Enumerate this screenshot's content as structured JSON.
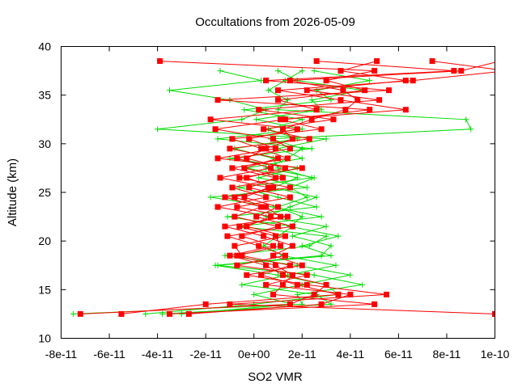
{
  "chart_data": {
    "type": "line",
    "title": "Occultations from 2026-05-09",
    "xlabel": "SO2 VMR",
    "ylabel": "Altitude (km)",
    "xlim": [
      -8e-11,
      1e-10
    ],
    "ylim": [
      10,
      40
    ],
    "grid": false,
    "legend": "none",
    "x_ticks": [
      {
        "value": -8e-11,
        "label": "-8e-11"
      },
      {
        "value": -6e-11,
        "label": "-6e-11"
      },
      {
        "value": -4e-11,
        "label": "-4e-11"
      },
      {
        "value": -2e-11,
        "label": "-2e-11"
      },
      {
        "value": 0,
        "label": "0e+00"
      },
      {
        "value": 2e-11,
        "label": "2e-11"
      },
      {
        "value": 4e-11,
        "label": "4e-11"
      },
      {
        "value": 6e-11,
        "label": "6e-11"
      },
      {
        "value": 8e-11,
        "label": "8e-11"
      },
      {
        "value": 1e-10,
        "label": "1e-10"
      }
    ],
    "y_ticks": [
      {
        "value": 10,
        "label": "10"
      },
      {
        "value": 15,
        "label": "15"
      },
      {
        "value": 20,
        "label": "20"
      },
      {
        "value": 25,
        "label": "25"
      },
      {
        "value": 30,
        "label": "30"
      },
      {
        "value": 35,
        "label": "35"
      },
      {
        "value": 40,
        "label": "40"
      }
    ],
    "series": [
      {
        "color": "#ff0000",
        "marker": "square",
        "y": [
          12.5,
          13.5,
          14.5,
          15.5,
          16.5,
          17.5,
          18.5,
          19.5,
          20.5,
          21.5,
          22.5,
          23.5,
          24.5,
          25.5,
          26.5,
          27.5,
          28.5,
          29.5,
          30.5,
          31.5,
          32.5,
          33.5,
          34.5,
          35.5,
          36.5,
          37.5,
          38.5
        ],
        "profiles": [
          [
            -7.2e-11,
            1.5e-11,
            2.5e-11,
            3e-11,
            1.2e-11,
            5e-12,
            -1e-11,
            8e-12,
            -5e-12,
            1e-11,
            -8e-12,
            3e-12,
            -1.2e-11,
            1.5e-11,
            -6e-12,
            2e-11,
            -1.5e-11,
            9e-12,
            -2e-12,
            1.8e-11,
            -1.8e-11,
            2.6e-11,
            1e-11,
            4.6e-11,
            3e-11,
            5e-11,
            -3.9e-11
          ],
          [
            -5.5e-11,
            -2e-11,
            3.5e-11,
            1.8e-11,
            3e-12,
            1.5e-11,
            -5e-12,
            -8e-12,
            1.3e-11,
            -3e-12,
            7e-12,
            -1.5e-11,
            5e-12,
            -9e-12,
            1.2e-11,
            -4e-12,
            1e-11,
            -1e-11,
            2.3e-11,
            4e-12,
            3.3e-11,
            2e-12,
            5.2e-11,
            2.2e-11,
            6.3e-11,
            3.6e-11,
            5.1e-11
          ],
          [
            -2.7e-11,
            2.8e-11,
            4e-11,
            5e-12,
            2.2e-11,
            -7e-12,
            1.3e-11,
            2e-12,
            -1.1e-11,
            1.6e-11,
            1e-12,
            1e-11,
            -4e-12,
            6e-12,
            -1.4e-11,
            7e-12,
            -7e-12,
            1.5e-11,
            8e-12,
            -1.6e-11,
            1.3e-11,
            4.8e-11,
            -1.5e-11,
            5.6e-11,
            5e-12,
            8.3e-11,
            2.6e-11
          ],
          [
            1e-10,
            -1e-11,
            5.5e-11,
            2.2e-11,
            -3e-12,
            2e-11,
            8e-12,
            1.6e-11,
            4e-12,
            -1.2e-11,
            1.4e-11,
            -7e-12,
            1.5e-11,
            -2e-12,
            9e-12,
            -9e-12,
            1.4e-11,
            3e-12,
            -9e-12,
            2.8e-11,
            1.1e-11,
            6.3e-11,
            3.6e-11,
            1e-11,
            6.6e-11,
            1.05e-10,
            7.4e-11
          ],
          [
            -3.5e-11,
            5e-11,
            8e-12,
            1.2e-11,
            1.6e-11,
            9e-12,
            -7e-12,
            1.1e-11,
            9e-12,
            -6e-12,
            1.1e-11,
            5e-12,
            -8e-12,
            8e-12,
            -3e-12,
            1.3e-11,
            -3e-12,
            5e-12,
            1.6e-11,
            1.2e-11,
            2.4e-11,
            3.8e-11,
            4.3e-11,
            3.7e-11,
            1.5e-11,
            8.6e-11,
            1.02e-10
          ]
        ]
      },
      {
        "color": "#00dd00",
        "marker": "plus",
        "y": [
          12.5,
          13.5,
          14.5,
          15.5,
          16.5,
          17.5,
          18.5,
          19.5,
          20.5,
          21.5,
          22.5,
          23.5,
          24.5,
          25.5,
          26.5,
          27.5,
          28.5,
          29.5,
          30.5,
          31.5,
          32.5,
          33.5,
          34.5,
          35.5,
          36.5,
          37.5
        ],
        "profiles": [
          [
            -7.5e-11,
            2e-11,
            1.8e-11,
            4.5e-11,
            2.5e-11,
            -1.5e-11,
            3.2e-11,
            2e-11,
            3.5e-11,
            1.5e-11,
            2e-11,
            1e-11,
            2.2e-11,
            1.5e-11,
            2.5e-11,
            5e-12,
            1.4e-11,
            2e-11,
            7e-12,
            9e-11,
            8.8e-11,
            1e-11,
            1.4e-11,
            6e-12,
            1.3e-11,
            2e-11
          ],
          [
            -4.5e-11,
            0.0,
            3.5e-11,
            3e-11,
            1e-11,
            -1.6e-11,
            2.8e-11,
            3.2e-11,
            1.6e-11,
            3e-11,
            5e-12,
            1.5e-11,
            2.6e-11,
            8e-12,
            1.8e-11,
            -3e-12,
            2e-11,
            1e-11,
            3e-11,
            -4e-11,
            -5e-12,
            5e-12,
            -1e-11,
            -3.5e-11,
            3e-12,
            -1.4e-11
          ],
          [
            -3e-11,
            1.6e-11,
            0.0,
            2e-11,
            4e-11,
            1.8e-11,
            -1.2e-11,
            2.3e-11,
            3e-11,
            -6e-12,
            2.8e-11,
            8e-12,
            -1.8e-11,
            2.2e-11,
            2e-12,
            1.8e-11,
            -1e-11,
            2.4e-11,
            -1.5e-11,
            2e-11,
            1e-12,
            2.8e-11,
            2.4e-11,
            4.5e-11,
            1.8e-11,
            1e-11
          ],
          [
            -3.8e-11,
            3.2e-11,
            2.6e-11,
            -5e-12,
            1.4e-11,
            3.4e-11,
            1.2e-11,
            4e-12,
            1e-11,
            1.6e-11,
            -1.1e-11,
            2.6e-11,
            1e-11,
            -6e-12,
            2.4e-11,
            1e-11,
            8e-12,
            -8e-12,
            1.8e-11,
            6e-12,
            2e-11,
            -4e-12,
            3.2e-11,
            2.6e-11,
            4.8e-11,
            2.5e-11
          ]
        ]
      }
    ]
  }
}
